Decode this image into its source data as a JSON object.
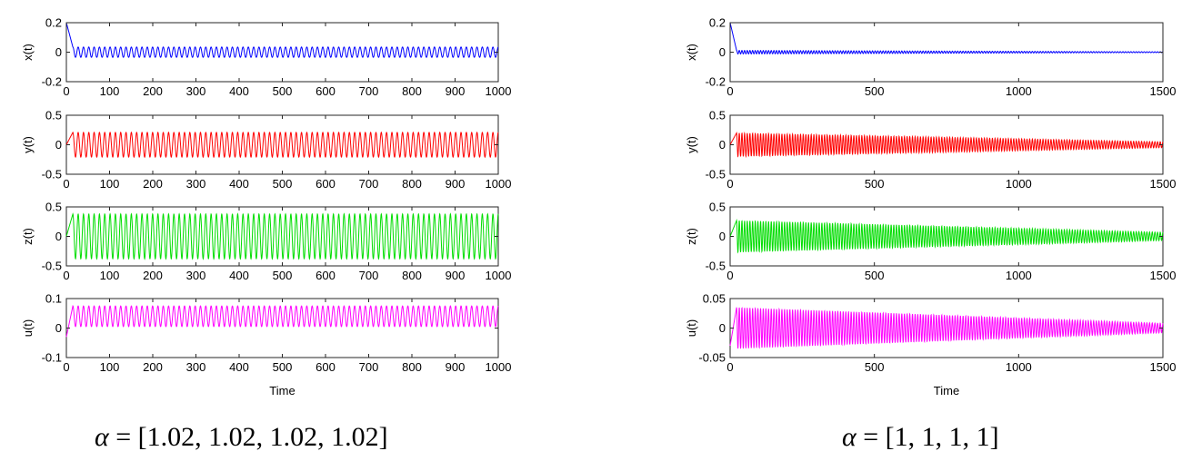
{
  "figure": {
    "captions": [
      {
        "symbol": "α",
        "text": " = [1.02, 1.02, 1.02, 1.02]"
      },
      {
        "symbol": "α",
        "text": " = [1, 1, 1, 1]"
      }
    ]
  },
  "chart_data": [
    {
      "type": "line",
      "xlabel": "Time",
      "xlim": [
        0,
        1000
      ],
      "xticks": [
        0,
        100,
        200,
        300,
        400,
        500,
        600,
        700,
        800,
        900,
        1000
      ],
      "grid": false,
      "subplots": [
        {
          "ylabel": "x(t)",
          "color": "#0000ff",
          "ylim": [
            -0.2,
            0.2
          ],
          "yticks": [
            "-0.2",
            "0",
            "0.2"
          ],
          "initial": 0.2,
          "center": 0.0,
          "amp_start": 0.035,
          "amp_end": 0.035,
          "oscillations": 80
        },
        {
          "ylabel": "y(t)",
          "color": "#ff0000",
          "ylim": [
            -0.5,
            0.5
          ],
          "yticks": [
            "-0.5",
            "0",
            "0.5"
          ],
          "initial": 0.0,
          "center": 0.0,
          "amp_start": 0.21,
          "amp_end": 0.21,
          "oscillations": 80
        },
        {
          "ylabel": "z(t)",
          "color": "#00dd00",
          "ylim": [
            -0.5,
            0.5
          ],
          "yticks": [
            "-0.5",
            "0",
            "0.5"
          ],
          "initial": 0.0,
          "center": 0.0,
          "amp_start": 0.38,
          "amp_end": 0.38,
          "oscillations": 80
        },
        {
          "ylabel": "u(t)",
          "color": "#ff00ff",
          "ylim": [
            -0.1,
            0.1
          ],
          "yticks": [
            "-0.1",
            "0",
            "0.1"
          ],
          "initial": -0.03,
          "center": 0.04,
          "amp_start": 0.035,
          "amp_end": 0.035,
          "oscillations": 80
        }
      ]
    },
    {
      "type": "line",
      "xlabel": "Time",
      "xlim": [
        0,
        1500
      ],
      "xticks": [
        0,
        500,
        1000,
        1500
      ],
      "grid": false,
      "subplots": [
        {
          "ylabel": "x(t)",
          "color": "#0000ff",
          "ylim": [
            -0.2,
            0.2
          ],
          "yticks": [
            "-0.2",
            "0",
            "0.2"
          ],
          "initial": 0.2,
          "center": 0.0,
          "amp_start": 0.012,
          "amp_end": 0.003,
          "oscillations": 160
        },
        {
          "ylabel": "y(t)",
          "color": "#ff0000",
          "ylim": [
            -0.5,
            0.5
          ],
          "yticks": [
            "-0.5",
            "0",
            "0.5"
          ],
          "initial": 0.0,
          "center": 0.0,
          "amp_start": 0.2,
          "amp_end": 0.05,
          "oscillations": 160
        },
        {
          "ylabel": "z(t)",
          "color": "#00dd00",
          "ylim": [
            -0.5,
            0.5
          ],
          "yticks": [
            "-0.5",
            "0",
            "0.5"
          ],
          "initial": 0.0,
          "center": 0.0,
          "amp_start": 0.27,
          "amp_end": 0.07,
          "oscillations": 160
        },
        {
          "ylabel": "u(t)",
          "color": "#ff00ff",
          "ylim": [
            -0.05,
            0.05
          ],
          "yticks": [
            "-0.05",
            "0",
            "0.05"
          ],
          "initial": -0.03,
          "center": 0.0,
          "amp_start": 0.035,
          "amp_end": 0.008,
          "oscillations": 160
        }
      ]
    }
  ]
}
